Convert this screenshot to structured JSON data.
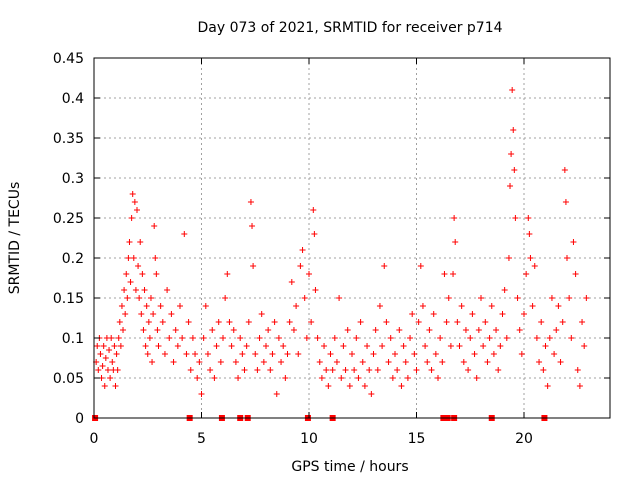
{
  "chart_data": {
    "type": "scatter",
    "title": "Day 073 of 2021, SRMTID for receiver p714",
    "xlabel": "GPS time / hours",
    "ylabel": "SRMTID / TECUs",
    "xlim": [
      0,
      24
    ],
    "ylim": [
      0,
      0.45
    ],
    "xticks": [
      0,
      5,
      10,
      15,
      20
    ],
    "xtick_labels": [
      "0",
      "5",
      "10",
      "15",
      "20"
    ],
    "yticks": [
      0,
      0.05,
      0.1,
      0.15,
      0.2,
      0.25,
      0.3,
      0.35,
      0.4,
      0.45
    ],
    "ytick_labels": [
      "0",
      "0.05",
      "0.1",
      "0.15",
      "0.2",
      "0.25",
      "0.3",
      "0.35",
      "0.4",
      "0.45"
    ],
    "grid": true,
    "marker": "+",
    "series_color": "#ff0000",
    "baseline_markers": {
      "marker": "square",
      "y": 0,
      "x": [
        0.05,
        4.45,
        5.95,
        6.8,
        7.15,
        9.95,
        11.1,
        16.25,
        16.45,
        16.75,
        18.5,
        20.95
      ]
    },
    "series": [
      {
        "name": "SRMTID",
        "points": [
          [
            0.1,
            0.07
          ],
          [
            0.15,
            0.09
          ],
          [
            0.2,
            0.06
          ],
          [
            0.25,
            0.1
          ],
          [
            0.3,
            0.08
          ],
          [
            0.35,
            0.05
          ],
          [
            0.4,
            0.065
          ],
          [
            0.45,
            0.09
          ],
          [
            0.5,
            0.04
          ],
          [
            0.55,
            0.075
          ],
          [
            0.6,
            0.1
          ],
          [
            0.65,
            0.06
          ],
          [
            0.7,
            0.085
          ],
          [
            0.75,
            0.05
          ],
          [
            0.8,
            0.1
          ],
          [
            0.85,
            0.07
          ],
          [
            0.9,
            0.06
          ],
          [
            0.95,
            0.09
          ],
          [
            1.0,
            0.04
          ],
          [
            1.05,
            0.08
          ],
          [
            1.1,
            0.06
          ],
          [
            1.15,
            0.1
          ],
          [
            1.2,
            0.12
          ],
          [
            1.25,
            0.09
          ],
          [
            1.3,
            0.14
          ],
          [
            1.35,
            0.11
          ],
          [
            1.4,
            0.16
          ],
          [
            1.45,
            0.13
          ],
          [
            1.5,
            0.18
          ],
          [
            1.55,
            0.15
          ],
          [
            1.6,
            0.2
          ],
          [
            1.65,
            0.22
          ],
          [
            1.7,
            0.17
          ],
          [
            1.75,
            0.25
          ],
          [
            1.8,
            0.28
          ],
          [
            1.85,
            0.2
          ],
          [
            1.9,
            0.27
          ],
          [
            1.95,
            0.16
          ],
          [
            2.0,
            0.26
          ],
          [
            2.05,
            0.19
          ],
          [
            2.1,
            0.15
          ],
          [
            2.15,
            0.22
          ],
          [
            2.2,
            0.13
          ],
          [
            2.25,
            0.18
          ],
          [
            2.3,
            0.11
          ],
          [
            2.35,
            0.16
          ],
          [
            2.4,
            0.09
          ],
          [
            2.45,
            0.14
          ],
          [
            2.5,
            0.08
          ],
          [
            2.55,
            0.12
          ],
          [
            2.6,
            0.1
          ],
          [
            2.65,
            0.15
          ],
          [
            2.7,
            0.07
          ],
          [
            2.75,
            0.13
          ],
          [
            2.8,
            0.24
          ],
          [
            2.85,
            0.2
          ],
          [
            2.9,
            0.18
          ],
          [
            2.95,
            0.11
          ],
          [
            3.0,
            0.09
          ],
          [
            3.1,
            0.14
          ],
          [
            3.2,
            0.12
          ],
          [
            3.3,
            0.08
          ],
          [
            3.4,
            0.16
          ],
          [
            3.5,
            0.1
          ],
          [
            3.6,
            0.13
          ],
          [
            3.7,
            0.07
          ],
          [
            3.8,
            0.11
          ],
          [
            3.9,
            0.09
          ],
          [
            4.0,
            0.14
          ],
          [
            4.1,
            0.1
          ],
          [
            4.2,
            0.23
          ],
          [
            4.3,
            0.08
          ],
          [
            4.4,
            0.12
          ],
          [
            4.5,
            0.06
          ],
          [
            4.6,
            0.1
          ],
          [
            4.7,
            0.08
          ],
          [
            4.8,
            0.05
          ],
          [
            4.9,
            0.07
          ],
          [
            5.0,
            0.03
          ],
          [
            5.1,
            0.1
          ],
          [
            5.2,
            0.14
          ],
          [
            5.3,
            0.08
          ],
          [
            5.4,
            0.06
          ],
          [
            5.5,
            0.11
          ],
          [
            5.6,
            0.05
          ],
          [
            5.7,
            0.09
          ],
          [
            5.8,
            0.12
          ],
          [
            5.9,
            0.07
          ],
          [
            6.0,
            0.1
          ],
          [
            6.1,
            0.15
          ],
          [
            6.2,
            0.18
          ],
          [
            6.3,
            0.12
          ],
          [
            6.4,
            0.09
          ],
          [
            6.5,
            0.11
          ],
          [
            6.6,
            0.07
          ],
          [
            6.7,
            0.05
          ],
          [
            6.8,
            0.1
          ],
          [
            6.9,
            0.08
          ],
          [
            7.0,
            0.06
          ],
          [
            7.1,
            0.09
          ],
          [
            7.2,
            0.12
          ],
          [
            7.3,
            0.27
          ],
          [
            7.35,
            0.24
          ],
          [
            7.4,
            0.19
          ],
          [
            7.5,
            0.08
          ],
          [
            7.6,
            0.06
          ],
          [
            7.7,
            0.1
          ],
          [
            7.8,
            0.13
          ],
          [
            7.9,
            0.07
          ],
          [
            8.0,
            0.09
          ],
          [
            8.1,
            0.11
          ],
          [
            8.2,
            0.06
          ],
          [
            8.3,
            0.08
          ],
          [
            8.4,
            0.12
          ],
          [
            8.5,
            0.03
          ],
          [
            8.6,
            0.1
          ],
          [
            8.7,
            0.07
          ],
          [
            8.8,
            0.09
          ],
          [
            8.9,
            0.05
          ],
          [
            9.0,
            0.08
          ],
          [
            9.1,
            0.12
          ],
          [
            9.2,
            0.17
          ],
          [
            9.3,
            0.11
          ],
          [
            9.4,
            0.14
          ],
          [
            9.5,
            0.08
          ],
          [
            9.6,
            0.19
          ],
          [
            9.7,
            0.21
          ],
          [
            9.8,
            0.15
          ],
          [
            9.9,
            0.1
          ],
          [
            10.0,
            0.18
          ],
          [
            10.1,
            0.12
          ],
          [
            10.2,
            0.26
          ],
          [
            10.25,
            0.23
          ],
          [
            10.3,
            0.16
          ],
          [
            10.4,
            0.1
          ],
          [
            10.5,
            0.07
          ],
          [
            10.6,
            0.05
          ],
          [
            10.7,
            0.09
          ],
          [
            10.8,
            0.06
          ],
          [
            10.9,
            0.04
          ],
          [
            11.0,
            0.08
          ],
          [
            11.1,
            0.06
          ],
          [
            11.2,
            0.1
          ],
          [
            11.3,
            0.07
          ],
          [
            11.4,
            0.15
          ],
          [
            11.5,
            0.05
          ],
          [
            11.6,
            0.09
          ],
          [
            11.7,
            0.06
          ],
          [
            11.8,
            0.11
          ],
          [
            11.9,
            0.04
          ],
          [
            12.0,
            0.08
          ],
          [
            12.1,
            0.06
          ],
          [
            12.2,
            0.1
          ],
          [
            12.3,
            0.05
          ],
          [
            12.4,
            0.12
          ],
          [
            12.5,
            0.07
          ],
          [
            12.6,
            0.04
          ],
          [
            12.7,
            0.09
          ],
          [
            12.8,
            0.06
          ],
          [
            12.9,
            0.03
          ],
          [
            13.0,
            0.08
          ],
          [
            13.1,
            0.11
          ],
          [
            13.2,
            0.06
          ],
          [
            13.3,
            0.14
          ],
          [
            13.4,
            0.09
          ],
          [
            13.5,
            0.19
          ],
          [
            13.6,
            0.12
          ],
          [
            13.7,
            0.07
          ],
          [
            13.8,
            0.1
          ],
          [
            13.9,
            0.05
          ],
          [
            14.0,
            0.08
          ],
          [
            14.1,
            0.06
          ],
          [
            14.2,
            0.11
          ],
          [
            14.3,
            0.04
          ],
          [
            14.4,
            0.09
          ],
          [
            14.5,
            0.07
          ],
          [
            14.6,
            0.05
          ],
          [
            14.7,
            0.1
          ],
          [
            14.8,
            0.13
          ],
          [
            14.9,
            0.08
          ],
          [
            15.0,
            0.06
          ],
          [
            15.1,
            0.12
          ],
          [
            15.2,
            0.19
          ],
          [
            15.3,
            0.14
          ],
          [
            15.4,
            0.09
          ],
          [
            15.5,
            0.07
          ],
          [
            15.6,
            0.11
          ],
          [
            15.7,
            0.06
          ],
          [
            15.8,
            0.13
          ],
          [
            15.9,
            0.08
          ],
          [
            16.0,
            0.05
          ],
          [
            16.1,
            0.1
          ],
          [
            16.2,
            0.07
          ],
          [
            16.3,
            0.18
          ],
          [
            16.4,
            0.12
          ],
          [
            16.5,
            0.15
          ],
          [
            16.6,
            0.09
          ],
          [
            16.7,
            0.18
          ],
          [
            16.75,
            0.25
          ],
          [
            16.8,
            0.22
          ],
          [
            16.9,
            0.12
          ],
          [
            17.0,
            0.09
          ],
          [
            17.1,
            0.14
          ],
          [
            17.2,
            0.07
          ],
          [
            17.3,
            0.11
          ],
          [
            17.4,
            0.06
          ],
          [
            17.5,
            0.1
          ],
          [
            17.6,
            0.13
          ],
          [
            17.7,
            0.08
          ],
          [
            17.8,
            0.05
          ],
          [
            17.9,
            0.11
          ],
          [
            18.0,
            0.15
          ],
          [
            18.1,
            0.09
          ],
          [
            18.2,
            0.12
          ],
          [
            18.3,
            0.07
          ],
          [
            18.4,
            0.1
          ],
          [
            18.5,
            0.14
          ],
          [
            18.6,
            0.08
          ],
          [
            18.7,
            0.11
          ],
          [
            18.8,
            0.06
          ],
          [
            18.9,
            0.09
          ],
          [
            19.0,
            0.13
          ],
          [
            19.1,
            0.16
          ],
          [
            19.2,
            0.1
          ],
          [
            19.3,
            0.2
          ],
          [
            19.35,
            0.29
          ],
          [
            19.4,
            0.33
          ],
          [
            19.45,
            0.41
          ],
          [
            19.5,
            0.36
          ],
          [
            19.55,
            0.31
          ],
          [
            19.6,
            0.25
          ],
          [
            19.7,
            0.15
          ],
          [
            19.8,
            0.11
          ],
          [
            19.9,
            0.08
          ],
          [
            20.0,
            0.13
          ],
          [
            20.1,
            0.18
          ],
          [
            20.2,
            0.25
          ],
          [
            20.25,
            0.23
          ],
          [
            20.3,
            0.2
          ],
          [
            20.4,
            0.14
          ],
          [
            20.5,
            0.19
          ],
          [
            20.6,
            0.1
          ],
          [
            20.7,
            0.07
          ],
          [
            20.8,
            0.12
          ],
          [
            20.9,
            0.06
          ],
          [
            21.0,
            0.09
          ],
          [
            21.1,
            0.04
          ],
          [
            21.2,
            0.1
          ],
          [
            21.3,
            0.15
          ],
          [
            21.4,
            0.08
          ],
          [
            21.5,
            0.11
          ],
          [
            21.6,
            0.14
          ],
          [
            21.7,
            0.07
          ],
          [
            21.8,
            0.12
          ],
          [
            21.9,
            0.31
          ],
          [
            21.95,
            0.27
          ],
          [
            22.0,
            0.2
          ],
          [
            22.1,
            0.15
          ],
          [
            22.2,
            0.1
          ],
          [
            22.3,
            0.22
          ],
          [
            22.4,
            0.18
          ],
          [
            22.5,
            0.06
          ],
          [
            22.6,
            0.04
          ],
          [
            22.7,
            0.12
          ],
          [
            22.8,
            0.09
          ],
          [
            22.9,
            0.15
          ]
        ]
      }
    ]
  }
}
